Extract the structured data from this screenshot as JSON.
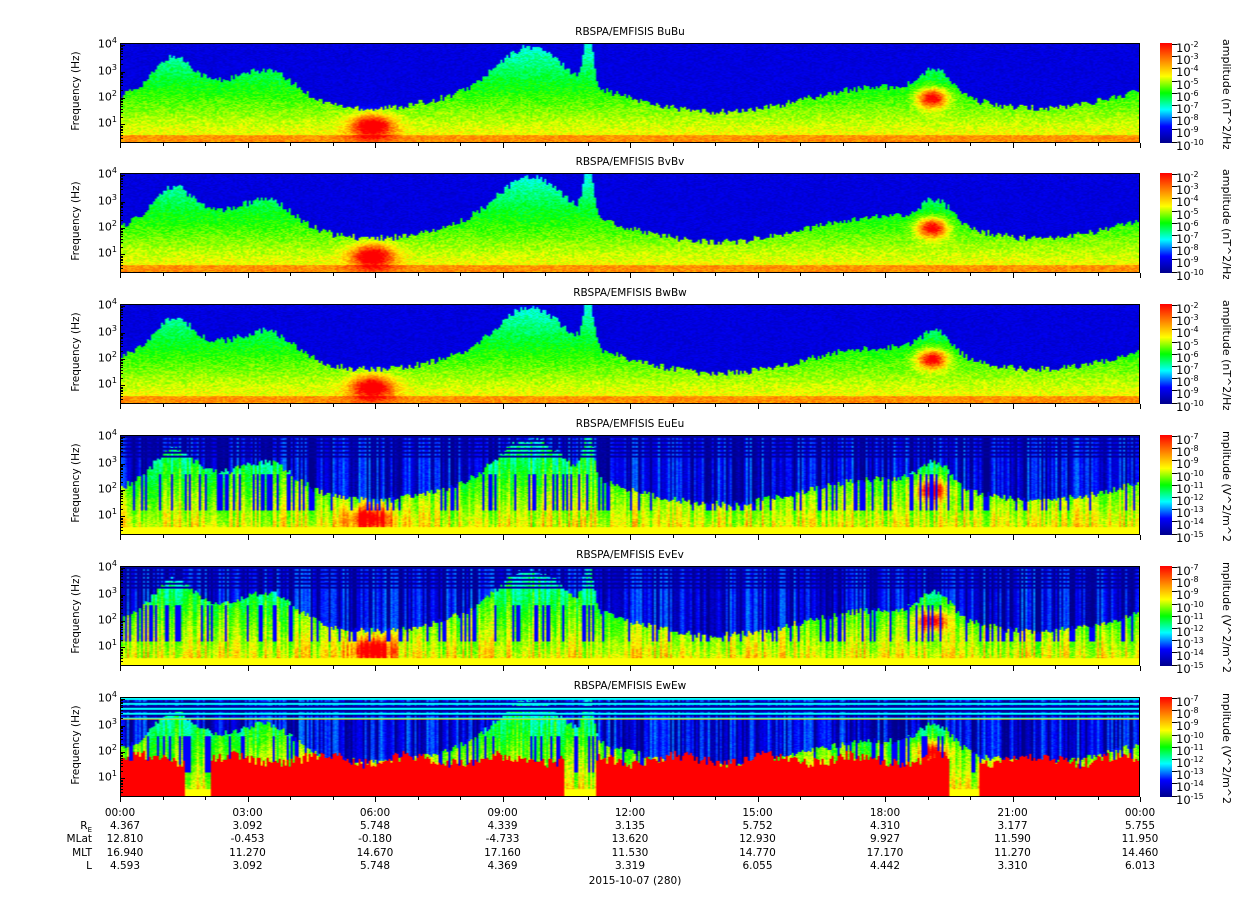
{
  "chart_data": {
    "type": "heatmap",
    "x_axis": {
      "tick_labels": [
        "00:00",
        "03:00",
        "06:00",
        "09:00",
        "12:00",
        "15:00",
        "18:00",
        "21:00",
        "00:00"
      ],
      "range_hours": [
        0,
        24
      ],
      "date_label": "2015-10-07 (280)"
    },
    "ephemeris": {
      "rows": [
        {
          "label": "R",
          "sub": "E",
          "values": [
            "4.367",
            "3.092",
            "5.748",
            "4.339",
            "3.135",
            "5.752",
            "4.310",
            "3.177",
            "5.755"
          ]
        },
        {
          "label": "MLat",
          "sub": "",
          "values": [
            "12.810",
            "-0.453",
            "-0.180",
            "-4.733",
            "13.620",
            "12.930",
            "9.927",
            "11.590",
            "11.950"
          ]
        },
        {
          "label": "MLT",
          "sub": "",
          "values": [
            "16.940",
            "11.270",
            "14.670",
            "17.160",
            "11.530",
            "14.770",
            "17.170",
            "11.270",
            "14.460"
          ]
        },
        {
          "label": "L",
          "sub": "",
          "values": [
            "4.593",
            "3.092",
            "5.748",
            "4.369",
            "3.319",
            "6.055",
            "4.442",
            "3.310",
            "6.013"
          ]
        }
      ]
    },
    "y_axis": {
      "label": "Frequency (Hz)",
      "scale": "log",
      "ylim": [
        2,
        12000
      ],
      "tick_exponents": [
        "1",
        "2",
        "3",
        "4"
      ]
    },
    "colormap": [
      "#00008c",
      "#0000ff",
      "#00ffff",
      "#00ff00",
      "#ffff00",
      "#ff8000",
      "#ff0000"
    ],
    "panels": [
      {
        "title": "RBSPA/EMFISIS  BuBu",
        "kind": "B",
        "colorbar_label": "amplitude (nT^2/Hz)",
        "clim_exponents": [
          "-2",
          "-3",
          "-4",
          "-5",
          "-6",
          "-7",
          "-8",
          "-9",
          "-10"
        ]
      },
      {
        "title": "RBSPA/EMFISIS  BvBv",
        "kind": "B",
        "colorbar_label": "amplitude (nT^2/Hz)",
        "clim_exponents": [
          "-2",
          "-3",
          "-4",
          "-5",
          "-6",
          "-7",
          "-8",
          "-9",
          "-10"
        ]
      },
      {
        "title": "RBSPA/EMFISIS  BwBw",
        "kind": "Bw",
        "colorbar_label": "amplitude (nT^2/Hz)",
        "clim_exponents": [
          "-2",
          "-3",
          "-4",
          "-5",
          "-6",
          "-7",
          "-8",
          "-9",
          "-10"
        ]
      },
      {
        "title": "RBSPA/EMFISIS  EuEu",
        "kind": "E",
        "colorbar_label": "mplitude (V^2/m^2/",
        "clim_exponents": [
          "-7",
          "-8",
          "-9",
          "-10",
          "-11",
          "-12",
          "-13",
          "-14",
          "-15"
        ]
      },
      {
        "title": "RBSPA/EMFISIS  EvEv",
        "kind": "E",
        "colorbar_label": "mplitude (V^2/m^2/",
        "clim_exponents": [
          "-7",
          "-8",
          "-9",
          "-10",
          "-11",
          "-12",
          "-13",
          "-14",
          "-15"
        ]
      },
      {
        "title": "RBSPA/EMFISIS  EwEw",
        "kind": "Ew",
        "colorbar_label": "mplitude (V^2/m^2/",
        "clim_exponents": [
          "-7",
          "-8",
          "-9",
          "-10",
          "-11",
          "-12",
          "-13",
          "-14",
          "-15"
        ]
      }
    ]
  }
}
